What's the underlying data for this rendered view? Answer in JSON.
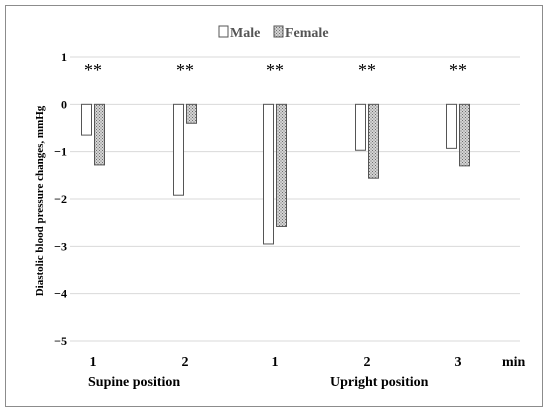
{
  "chart_data": {
    "type": "bar",
    "title": "",
    "ylabel": "Diastolic blood pressure changes, mmHg",
    "xlabel": "min",
    "ylim": [
      -5,
      1
    ],
    "yticks": [
      1,
      0,
      -1,
      -2,
      -3,
      -4,
      -5
    ],
    "grid": "horizontal",
    "legend_position": "top-center",
    "categories": [
      "1",
      "2",
      "1",
      "2",
      "3"
    ],
    "groups": [
      {
        "label": "Supine position",
        "categories": [
          0,
          1
        ]
      },
      {
        "label": "Upright position",
        "categories": [
          2,
          3,
          4
        ]
      }
    ],
    "annotations": [
      "**",
      "**",
      "**",
      "**",
      "**"
    ],
    "series": [
      {
        "name": "Male",
        "color": "#ffffff",
        "pattern": "none",
        "values": [
          -0.65,
          -1.92,
          -2.95,
          -0.97,
          -0.93
        ]
      },
      {
        "name": "Female",
        "color": "#bfbfbf",
        "pattern": "dotted",
        "values": [
          -1.28,
          -0.4,
          -2.58,
          -1.56,
          -1.3
        ]
      }
    ]
  }
}
